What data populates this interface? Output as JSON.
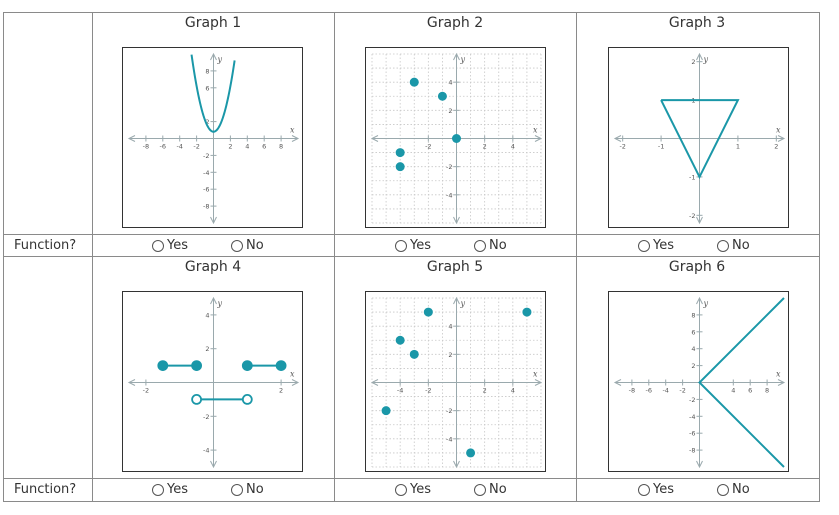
{
  "row_label": "Function?",
  "yes_label": "Yes",
  "no_label": "No",
  "colors": {
    "curve": "#1a97a8",
    "axis": "#9aa9ad",
    "grid": "#c7c7c7",
    "tick_text": "#555555"
  },
  "graphs": [
    {
      "title": "Graph 1"
    },
    {
      "title": "Graph 2"
    },
    {
      "title": "Graph 3"
    },
    {
      "title": "Graph 4"
    },
    {
      "title": "Graph 5"
    },
    {
      "title": "Graph 6"
    }
  ],
  "chart_data": [
    {
      "type": "line",
      "title": "Graph 1",
      "xlabel": "x",
      "ylabel": "y",
      "xlim": [
        -10,
        10
      ],
      "ylim": [
        -10,
        10
      ],
      "x_ticks": [
        -8,
        -6,
        -4,
        -2,
        2,
        4,
        6,
        8
      ],
      "y_ticks": [
        -8,
        -6,
        -4,
        -2,
        2,
        6,
        8
      ],
      "grid": false,
      "series": [
        {
          "points": [
            [
              -2.5,
              10
            ],
            [
              -2,
              6.5
            ],
            [
              -1,
              2.5
            ],
            [
              0,
              0.8
            ],
            [
              1,
              2.5
            ],
            [
              2,
              6.5
            ],
            [
              2.5,
              10
            ]
          ]
        }
      ]
    },
    {
      "type": "scatter",
      "title": "Graph 2",
      "xlabel": "x",
      "ylabel": "y",
      "xlim": [
        -6,
        6
      ],
      "ylim": [
        -6,
        6
      ],
      "x_ticks": [
        -2,
        2,
        4
      ],
      "y_ticks": [
        4,
        2,
        -2,
        -4
      ],
      "grid": true,
      "series": [
        {
          "points": [
            [
              -3,
              4
            ],
            [
              -1,
              3
            ],
            [
              0,
              0
            ],
            [
              -4,
              -1
            ],
            [
              -4,
              -2
            ]
          ]
        }
      ]
    },
    {
      "type": "line",
      "title": "Graph 3",
      "xlabel": "x",
      "ylabel": "y",
      "xlim": [
        -2.2,
        2.2
      ],
      "ylim": [
        -2.2,
        2.2
      ],
      "x_ticks": [
        -2,
        -1,
        1,
        2
      ],
      "y_ticks": [
        2,
        1,
        -1,
        -2
      ],
      "grid": false,
      "series": [
        {
          "points": [
            [
              -1,
              1
            ],
            [
              1,
              1
            ],
            [
              0,
              -1
            ],
            [
              -1,
              1
            ]
          ]
        }
      ]
    },
    {
      "type": "line",
      "title": "Graph 4",
      "xlabel": "x",
      "ylabel": "y",
      "xlim": [
        -2.5,
        2.5
      ],
      "ylim": [
        -5,
        5
      ],
      "x_ticks": [
        -2,
        2
      ],
      "y_ticks": [
        4,
        2,
        -2,
        -4
      ],
      "grid": false,
      "segments": [
        {
          "from": [
            -1.5,
            1
          ],
          "to": [
            -0.5,
            1
          ],
          "from_closed": true,
          "to_closed": true
        },
        {
          "from": [
            1,
            1
          ],
          "to": [
            2,
            1
          ],
          "from_closed": true,
          "to_closed": true
        },
        {
          "from": [
            -0.5,
            -1
          ],
          "to": [
            1,
            -1
          ],
          "from_closed": false,
          "to_closed": false
        }
      ]
    },
    {
      "type": "scatter",
      "title": "Graph 5",
      "xlabel": "x",
      "ylabel": "y",
      "xlim": [
        -6,
        6
      ],
      "ylim": [
        -6,
        6
      ],
      "x_ticks": [
        -4,
        -2,
        2,
        4
      ],
      "y_ticks": [
        4,
        2,
        -2,
        -4
      ],
      "grid": true,
      "series": [
        {
          "points": [
            [
              -2,
              5
            ],
            [
              5,
              5
            ],
            [
              -4,
              3
            ],
            [
              -3,
              2
            ],
            [
              -5,
              -2
            ],
            [
              1,
              -5
            ]
          ]
        }
      ]
    },
    {
      "type": "line",
      "title": "Graph 6",
      "xlabel": "x",
      "ylabel": "y",
      "xlim": [
        -10,
        10
      ],
      "ylim": [
        -10,
        10
      ],
      "x_ticks": [
        -8,
        -6,
        -4,
        -2,
        4,
        6,
        8
      ],
      "y_ticks": [
        8,
        6,
        4,
        2,
        -2,
        -4,
        -6,
        -8
      ],
      "grid": false,
      "series": [
        {
          "points": [
            [
              10,
              10
            ],
            [
              0,
              0
            ],
            [
              10,
              -10
            ]
          ]
        }
      ]
    }
  ]
}
